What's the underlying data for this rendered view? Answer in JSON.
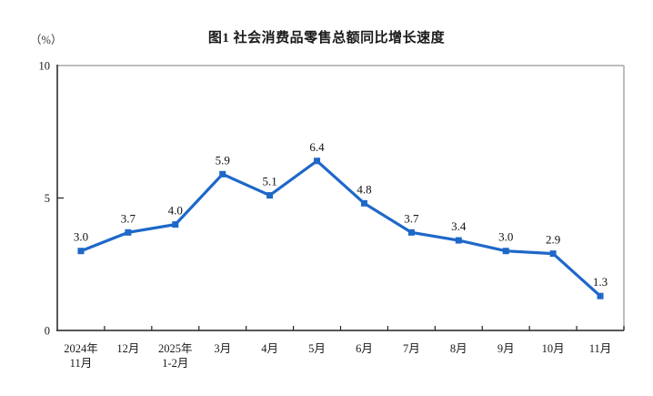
{
  "header": {
    "title": "图1 社会消费品零售总额同比增长速度",
    "unit_label": "（%）"
  },
  "chart_data": {
    "type": "line",
    "title": "图1 社会消费品零售总额同比增长速度",
    "unit": "（%）",
    "categories": [
      [
        "2024年",
        "11月"
      ],
      [
        "12月"
      ],
      [
        "2025年",
        "1-2月"
      ],
      [
        "3月"
      ],
      [
        "4月"
      ],
      [
        "5月"
      ],
      [
        "6月"
      ],
      [
        "7月"
      ],
      [
        "8月"
      ],
      [
        "9月"
      ],
      [
        "10月"
      ],
      [
        "11月"
      ]
    ],
    "values": [
      3.0,
      3.7,
      4.0,
      5.9,
      5.1,
      6.4,
      4.8,
      3.7,
      3.4,
      3.0,
      2.9,
      1.3
    ],
    "labels": [
      "3.0",
      "3.7",
      "4.0",
      "5.9",
      "5.1",
      "6.4",
      "4.8",
      "3.7",
      "3.4",
      "3.0",
      "2.9",
      "1.3"
    ],
    "ylim": [
      0,
      10
    ],
    "yticks": [
      0,
      5,
      10
    ],
    "grid": false,
    "legend": "none",
    "marker": "square",
    "colors": {
      "line": "#1E68C8",
      "axis": "#222222",
      "frame": "#A9A9A9",
      "text": "#1A1A1A"
    }
  }
}
